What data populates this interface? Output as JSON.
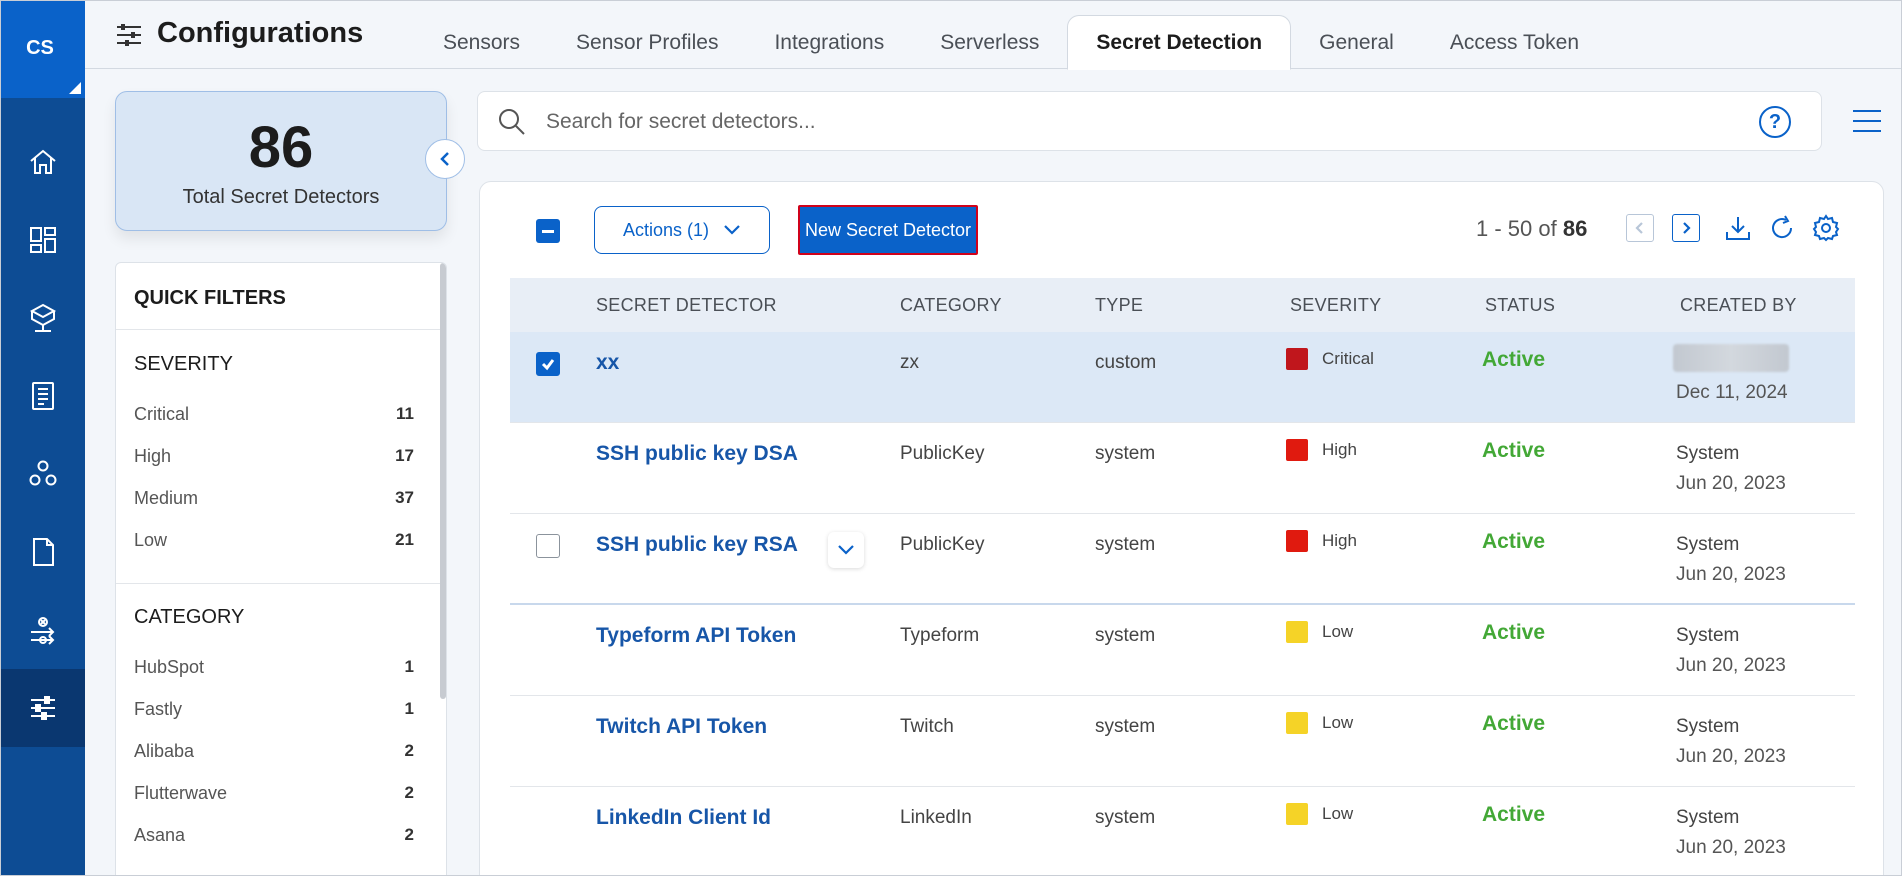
{
  "user": {
    "initials": "CS"
  },
  "header": {
    "title": "Configurations",
    "tabs": [
      {
        "label": "Sensors"
      },
      {
        "label": "Sensor Profiles"
      },
      {
        "label": "Integrations"
      },
      {
        "label": "Serverless"
      },
      {
        "label": "Secret Detection",
        "active": true
      },
      {
        "label": "General"
      },
      {
        "label": "Access Token"
      }
    ]
  },
  "rail": {
    "items": [
      "home-icon",
      "dashboard-icon",
      "cube-network-icon",
      "report-icon",
      "hexagon-nodes-icon",
      "document-icon",
      "settings-flow-icon",
      "sliders-icon"
    ],
    "active": "sliders-icon"
  },
  "summary": {
    "count": "86",
    "label": "Total Secret Detectors"
  },
  "filters": {
    "title": "QUICK FILTERS",
    "severity": {
      "title": "SEVERITY",
      "items": [
        {
          "label": "Critical",
          "count": "11"
        },
        {
          "label": "High",
          "count": "17"
        },
        {
          "label": "Medium",
          "count": "37"
        },
        {
          "label": "Low",
          "count": "21"
        }
      ]
    },
    "category": {
      "title": "CATEGORY",
      "items": [
        {
          "label": "HubSpot",
          "count": "1"
        },
        {
          "label": "Fastly",
          "count": "1"
        },
        {
          "label": "Alibaba",
          "count": "2"
        },
        {
          "label": "Flutterwave",
          "count": "2"
        },
        {
          "label": "Asana",
          "count": "2"
        }
      ]
    }
  },
  "search": {
    "placeholder": "Search for secret detectors...",
    "help": "?"
  },
  "toolbar": {
    "actions_label": "Actions (1)",
    "new_label": "New Secret Detector",
    "pager_range": "1 - 50 of",
    "pager_total": "86"
  },
  "table": {
    "columns": [
      "SECRET DETECTOR",
      "CATEGORY",
      "TYPE",
      "SEVERITY",
      "STATUS",
      "CREATED BY"
    ],
    "rows": [
      {
        "name": "xx",
        "category": "zx",
        "type": "custom",
        "severity": "Critical",
        "severity_color": "#c0161c",
        "status": "Active",
        "created_by": "",
        "created_date": "Dec 11, 2024",
        "selected": true
      },
      {
        "name": "SSH public key DSA",
        "category": "PublicKey",
        "type": "system",
        "severity": "High",
        "severity_color": "#e01a0f",
        "status": "Active",
        "created_by": "System",
        "created_date": "Jun 20, 2023"
      },
      {
        "name": "SSH public key RSA",
        "category": "PublicKey",
        "type": "system",
        "severity": "High",
        "severity_color": "#e01a0f",
        "status": "Active",
        "created_by": "System",
        "created_date": "Jun 20, 2023"
      },
      {
        "name": "Typeform API Token",
        "category": "Typeform",
        "type": "system",
        "severity": "Low",
        "severity_color": "#f5d327",
        "status": "Active",
        "created_by": "System",
        "created_date": "Jun 20, 2023"
      },
      {
        "name": "Twitch API Token",
        "category": "Twitch",
        "type": "system",
        "severity": "Low",
        "severity_color": "#f5d327",
        "status": "Active",
        "created_by": "System",
        "created_date": "Jun 20, 2023"
      },
      {
        "name": "LinkedIn Client Id",
        "category": "LinkedIn",
        "type": "system",
        "severity": "Low",
        "severity_color": "#f5d327",
        "status": "Active",
        "created_by": "System",
        "created_date": "Jun 20, 2023"
      }
    ]
  },
  "colors": {
    "brand": "#0a62c9",
    "rail": "#0d4c94",
    "active": "#43a836"
  }
}
